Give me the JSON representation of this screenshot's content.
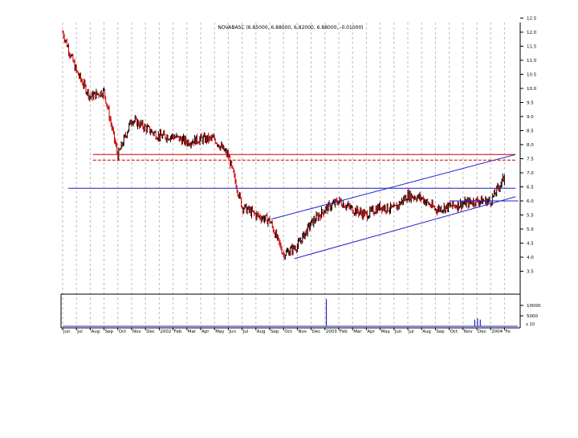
{
  "chart_data": {
    "type": "line",
    "title": "NOVABASC (6.85000, 6.88000, 6.82000, 6.88000, -0.01000)",
    "y_axis_side": "right",
    "ylim": [
      3.0,
      12.5
    ],
    "y_ticks": [
      "3.5",
      "4.0",
      "4.5",
      "5.0",
      "5.5",
      "6.0",
      "6.5",
      "7.0",
      "7.5",
      "8.0",
      "8.5",
      "9.0",
      "9.5",
      "10.0",
      "10.5",
      "11.0",
      "11.5",
      "12.0",
      "12.5"
    ],
    "volume_ticks": [
      "10000",
      "5000"
    ],
    "volume_unit_label": "x 10",
    "x_tick_labels": [
      "Jun",
      "Jul",
      "Aug",
      "Sep",
      "Oct",
      "Nov",
      "Dec",
      "2002",
      "Feb",
      "Mar",
      "Apr",
      "May",
      "Jun",
      "Jul",
      "Aug",
      "Sep",
      "Oct",
      "Nov",
      "Dec",
      "2003",
      "Feb",
      "Mar",
      "Apr",
      "May",
      "Jun",
      "Jul",
      "Aug",
      "Sep",
      "Oct",
      "Nov",
      "Dec",
      "2004",
      "Fe"
    ],
    "grid": "vertical dashed",
    "colors": {
      "up": "#000000",
      "down": "#cc0000",
      "trendline": "#1f1fd0",
      "resistance": "#cc0000",
      "axis": "#000000",
      "grid": "#bbbbbb"
    },
    "price_series": {
      "x": [
        0,
        1,
        2,
        3,
        4,
        5,
        6,
        7,
        8,
        9,
        10,
        11,
        12,
        13,
        14,
        15,
        16,
        17,
        18,
        19,
        20,
        21,
        22,
        23,
        24,
        25,
        26,
        27,
        28,
        29,
        30,
        31,
        32
      ],
      "close": [
        12.0,
        10.6,
        9.7,
        9.9,
        7.6,
        8.9,
        8.6,
        8.3,
        8.3,
        8.1,
        8.2,
        8.2,
        7.6,
        5.8,
        5.5,
        5.3,
        4.1,
        4.4,
        5.2,
        5.7,
        6.0,
        5.7,
        5.5,
        5.8,
        5.7,
        6.2,
        6.1,
        5.7,
        5.8,
        5.9,
        6.0,
        6.0,
        6.85
      ]
    },
    "volume_spikes": [
      {
        "x": 19.1,
        "value": 13000
      },
      {
        "x": 29.85,
        "value": 3200
      },
      {
        "x": 30.05,
        "value": 3800
      },
      {
        "x": 30.25,
        "value": 3200
      }
    ],
    "lines": [
      {
        "kind": "horizontal",
        "style": "solid",
        "color": "resistance",
        "y": 7.65,
        "x_from": 2.2,
        "x_to": 32.8
      },
      {
        "kind": "horizontal",
        "style": "dashed",
        "color": "resistance",
        "y": 7.45,
        "x_from": 2.2,
        "x_to": 32.8
      },
      {
        "kind": "horizontal",
        "style": "solid",
        "color": "trendline",
        "y": 6.45,
        "x_from": 0.4,
        "x_to": 32.8
      },
      {
        "kind": "channel",
        "style": "solid",
        "color": "trendline",
        "from": [
          15.1,
          5.35
        ],
        "to": [
          32.8,
          7.65
        ]
      },
      {
        "kind": "channel",
        "style": "solid",
        "color": "trendline",
        "from": [
          16.8,
          3.95
        ],
        "to": [
          32.8,
          6.15
        ]
      },
      {
        "kind": "horizontal",
        "style": "solid",
        "color": "trendline",
        "y": 6.0,
        "x_from": 28.0,
        "x_to": 33.0
      }
    ]
  }
}
